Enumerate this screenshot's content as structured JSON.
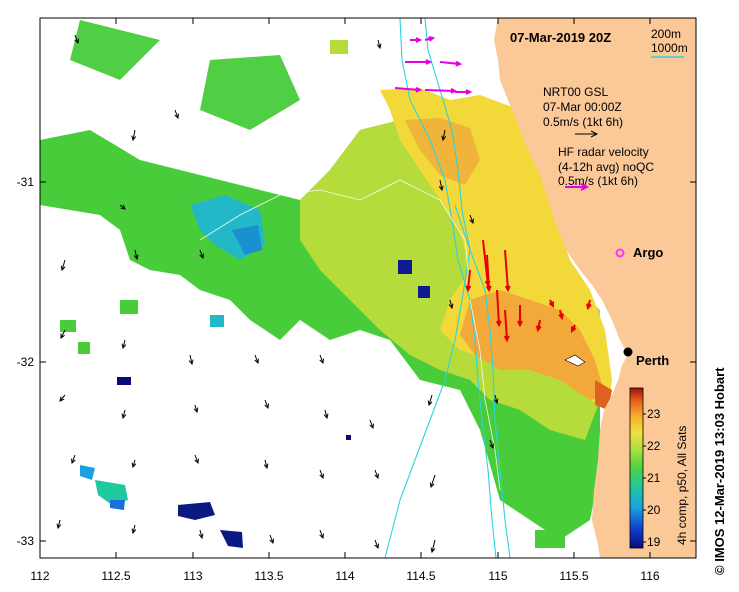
{
  "map": {
    "date_label": "07-Mar-2019 20Z",
    "scale": {
      "contour1": "200m",
      "contour2": "1000m"
    },
    "legend": {
      "model_title": "NRT00 GSL",
      "model_time": "07-Mar 00:00Z",
      "model_speed": "0.5m/s (1kt 6h)",
      "radar_title": "HF radar velocity",
      "radar_sub": "(4-12h avg) noQC",
      "radar_speed": "0.5m/s (1kt 6h)"
    },
    "argo_label": "Argo",
    "city_label": "Perth",
    "colorbar": {
      "label": "4h comp, p50, All Sats",
      "ticks": [
        "19",
        "20",
        "21",
        "22",
        "23"
      ],
      "range": [
        18.8,
        23.8
      ]
    },
    "x_ticks": [
      "112",
      "112.5",
      "113",
      "113.5",
      "114",
      "114.5",
      "115",
      "115.5",
      "116"
    ],
    "y_ticks": [
      "-31",
      "-32",
      "-33"
    ],
    "lon_range": [
      112,
      116.3
    ],
    "lat_range": [
      -33.1,
      -30.1
    ],
    "credit": "© IMOS 12-Mar-2019 13:03 Hobart",
    "colors": {
      "land": "#fbc898",
      "model_arrow": "#000000",
      "radar_arrow": "#e60000",
      "radar_legend_arrow": "#e600e6",
      "argo": "#ff33ff",
      "contour": "#2ad4e0"
    }
  }
}
